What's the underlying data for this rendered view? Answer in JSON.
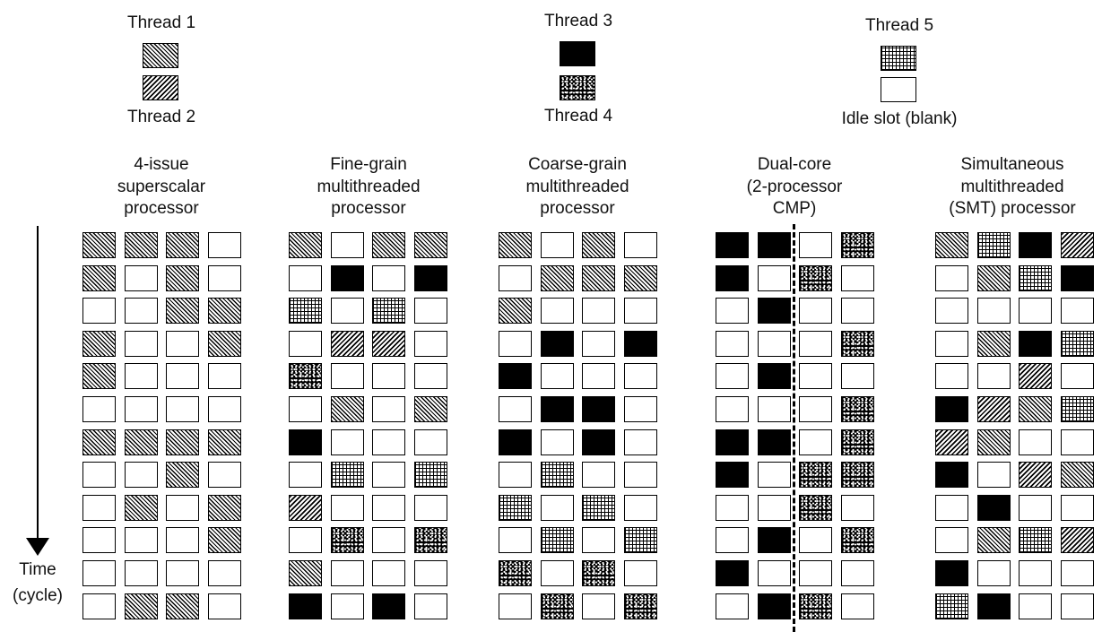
{
  "legend": {
    "thread1": "Thread 1",
    "thread2": "Thread 2",
    "thread3": "Thread 3",
    "thread4": "Thread 4",
    "thread5": "Thread 5",
    "idle": "Idle slot (blank)"
  },
  "time_axis": {
    "line1": "Time",
    "line2": "(cycle)"
  },
  "panels": [
    {
      "title": [
        "4-issue",
        "superscalar",
        "processor"
      ],
      "rows": [
        "1110",
        "1010",
        "0011",
        "1001",
        "1000",
        "0000",
        "1111",
        "0010",
        "0101",
        "0001",
        "0000",
        "0110"
      ]
    },
    {
      "title": [
        "Fine-grain",
        "multithreaded",
        "processor"
      ],
      "rows": [
        "1011",
        "0303",
        "5050",
        "0220",
        "4000",
        "0101",
        "3000",
        "0505",
        "2000",
        "0404",
        "1000",
        "3030"
      ]
    },
    {
      "title": [
        "Coarse-grain",
        "multithreaded",
        "processor"
      ],
      "rows": [
        "1010",
        "0111",
        "1000",
        "0303",
        "3000",
        "0330",
        "3030",
        "0500",
        "5050",
        "0505",
        "4040",
        "0404"
      ]
    },
    {
      "title": [
        "Dual-core",
        "(2-processor",
        "CMP)"
      ],
      "rows": [
        "3304",
        "3040",
        "0300",
        "0004",
        "0300",
        "0004",
        "3304",
        "3044",
        "0040",
        "0304",
        "3000",
        "0340"
      ]
    },
    {
      "title": [
        "Simultaneous",
        "multithreaded",
        "(SMT) processor"
      ],
      "rows": [
        "1532",
        "0153",
        "0000",
        "0135",
        "0020",
        "3215",
        "2100",
        "3021",
        "0300",
        "0152",
        "3000",
        "5300"
      ]
    }
  ]
}
